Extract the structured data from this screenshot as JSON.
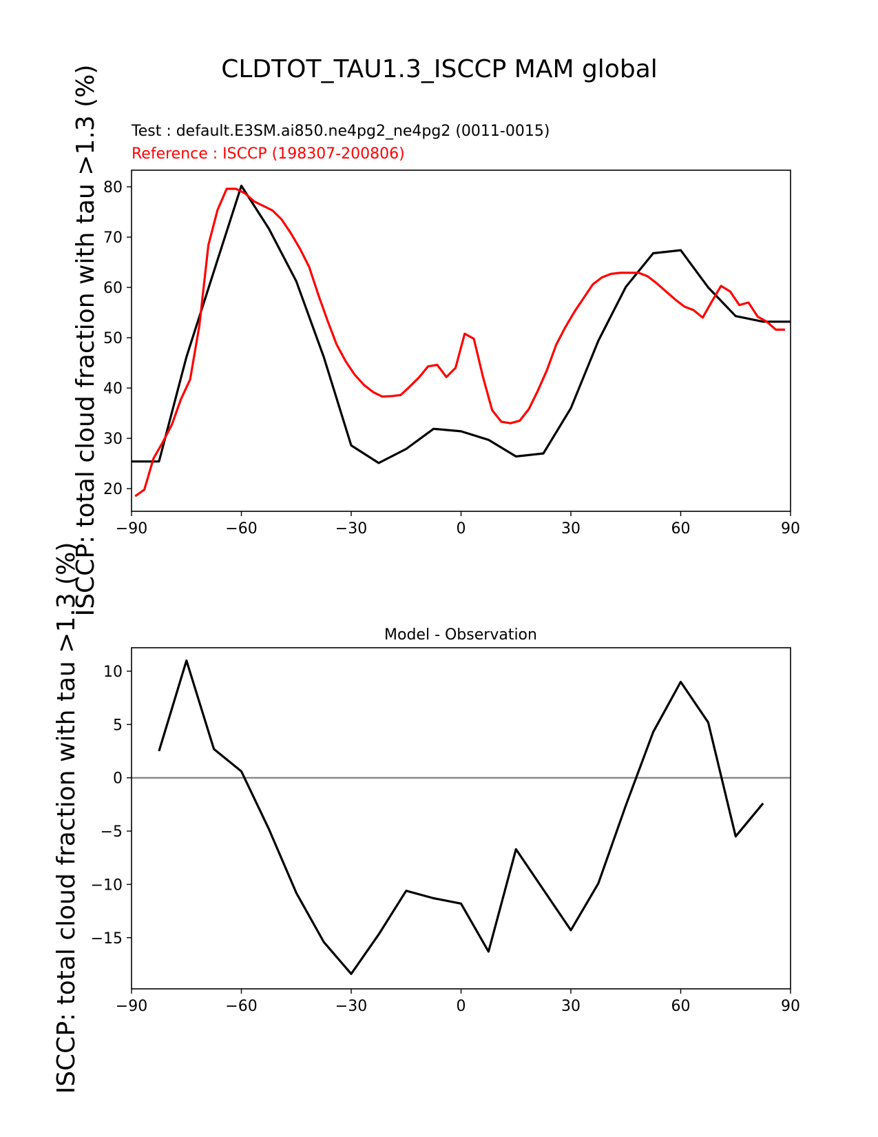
{
  "figure": {
    "title": "CLDTOT_TAU1.3_ISCCP MAM global"
  },
  "chart_data": [
    {
      "type": "line",
      "name": "latitude-profile",
      "subtitle_test": "Test : default.E3SM.ai850.ne4pg2_ne4pg2 (0011-0015)",
      "subtitle_ref": "Reference : ISCCP (198307-200806)",
      "ylabel": "ISCCP: total cloud fraction with tau >1.3 (%)",
      "xlabel": "",
      "xlim": [
        -90,
        90
      ],
      "ylim": [
        15.5,
        83.3
      ],
      "xticks": [
        -90,
        -60,
        -30,
        0,
        30,
        60,
        90
      ],
      "yticks": [
        20,
        30,
        40,
        50,
        60,
        70,
        80
      ],
      "xtick_labels": [
        "−90",
        "−60",
        "−30",
        "0",
        "30",
        "60",
        "90"
      ],
      "ytick_labels": [
        "20",
        "30",
        "40",
        "50",
        "60",
        "70",
        "80"
      ],
      "grid": false,
      "series": [
        {
          "name": "Test",
          "color": "#000000",
          "x": [
            -90,
            -82.5,
            -75,
            -67.5,
            -60,
            -52.5,
            -45,
            -37.5,
            -30,
            -22.5,
            -15,
            -7.5,
            0,
            7.5,
            15,
            22.5,
            30,
            37.5,
            45,
            52.5,
            60,
            67.5,
            75,
            82.5,
            90
          ],
          "values": [
            25.4,
            25.4,
            46.2,
            63.2,
            80.2,
            71.7,
            61.2,
            46.2,
            28.6,
            25.1,
            27.9,
            31.9,
            31.4,
            29.7,
            26.4,
            27.0,
            36.0,
            49.4,
            60.1,
            66.8,
            67.4,
            60.0,
            54.3,
            53.2,
            53.2
          ]
        },
        {
          "name": "Reference",
          "color": "#ff0000",
          "x": [
            -89,
            -86.5,
            -84,
            -81.5,
            -79,
            -76.5,
            -74,
            -71.5,
            -69,
            -66.5,
            -64,
            -61.5,
            -59,
            -56.5,
            -54,
            -51.5,
            -49,
            -46.5,
            -44,
            -41.5,
            -39,
            -36.5,
            -34,
            -31.5,
            -29,
            -26.5,
            -24,
            -21.5,
            -19,
            -16.5,
            -14,
            -11.5,
            -9,
            -6.5,
            -4,
            -1.5,
            1,
            3.5,
            6,
            8.5,
            11,
            13.5,
            16,
            18.5,
            21,
            23.5,
            26,
            28.5,
            31,
            33.5,
            36,
            38.5,
            41,
            43.5,
            46,
            48.5,
            51,
            53.5,
            56,
            58.5,
            61,
            63.5,
            66,
            68.5,
            71,
            73.5,
            76,
            78.5,
            81,
            83.5,
            86,
            88.5
          ],
          "values": [
            18.5,
            19.8,
            26.0,
            29.2,
            32.7,
            37.8,
            41.7,
            52.3,
            68.4,
            75.4,
            79.6,
            79.6,
            78.7,
            77.1,
            76.2,
            75.3,
            73.5,
            70.8,
            67.7,
            64.1,
            58.6,
            53.5,
            48.7,
            45.3,
            42.6,
            40.6,
            39.2,
            38.3,
            38.4,
            38.6,
            40.3,
            42.1,
            44.3,
            44.6,
            42.2,
            44.0,
            50.8,
            49.8,
            42.2,
            35.6,
            33.3,
            33.0,
            33.5,
            35.8,
            39.5,
            43.6,
            48.6,
            52.1,
            55.2,
            57.9,
            60.6,
            62.0,
            62.7,
            62.9,
            62.9,
            62.9,
            62.2,
            60.8,
            59.2,
            57.6,
            56.2,
            55.5,
            54.0,
            57.2,
            60.3,
            59.2,
            56.5,
            57.0,
            54.2,
            53.2,
            51.6,
            51.6
          ]
        }
      ]
    },
    {
      "type": "line",
      "name": "difference",
      "title": "Model - Observation",
      "ylabel": "ISCCP: total cloud fraction with tau >1.3 (%)",
      "xlabel": "",
      "xlim": [
        -90,
        90
      ],
      "ylim": [
        -19.8,
        12.2
      ],
      "xticks": [
        -90,
        -60,
        -30,
        0,
        30,
        60,
        90
      ],
      "yticks": [
        -15,
        -10,
        -5,
        0,
        5,
        10
      ],
      "xtick_labels": [
        "−90",
        "−60",
        "−30",
        "0",
        "30",
        "60",
        "90"
      ],
      "ytick_labels": [
        "−15",
        "−10",
        "−5",
        "0",
        "5",
        "10"
      ],
      "grid": false,
      "zero_line_color": "#808080",
      "series": [
        {
          "name": "Model - Observation",
          "color": "#000000",
          "x": [
            -82.5,
            -75,
            -67.5,
            -60,
            -52.5,
            -45,
            -37.5,
            -30,
            -22.5,
            -15,
            -7.5,
            0,
            7.5,
            15,
            22.5,
            30,
            37.5,
            45,
            52.5,
            60,
            67.5,
            75,
            82.5
          ],
          "values": [
            2.5,
            11.0,
            2.7,
            0.6,
            -4.8,
            -10.8,
            -15.4,
            -18.4,
            -14.7,
            -10.6,
            -11.3,
            -11.8,
            -16.3,
            -6.7,
            -10.5,
            -14.3,
            -9.9,
            -2.6,
            4.3,
            9.0,
            5.2,
            -5.5,
            -2.4
          ]
        }
      ]
    }
  ]
}
